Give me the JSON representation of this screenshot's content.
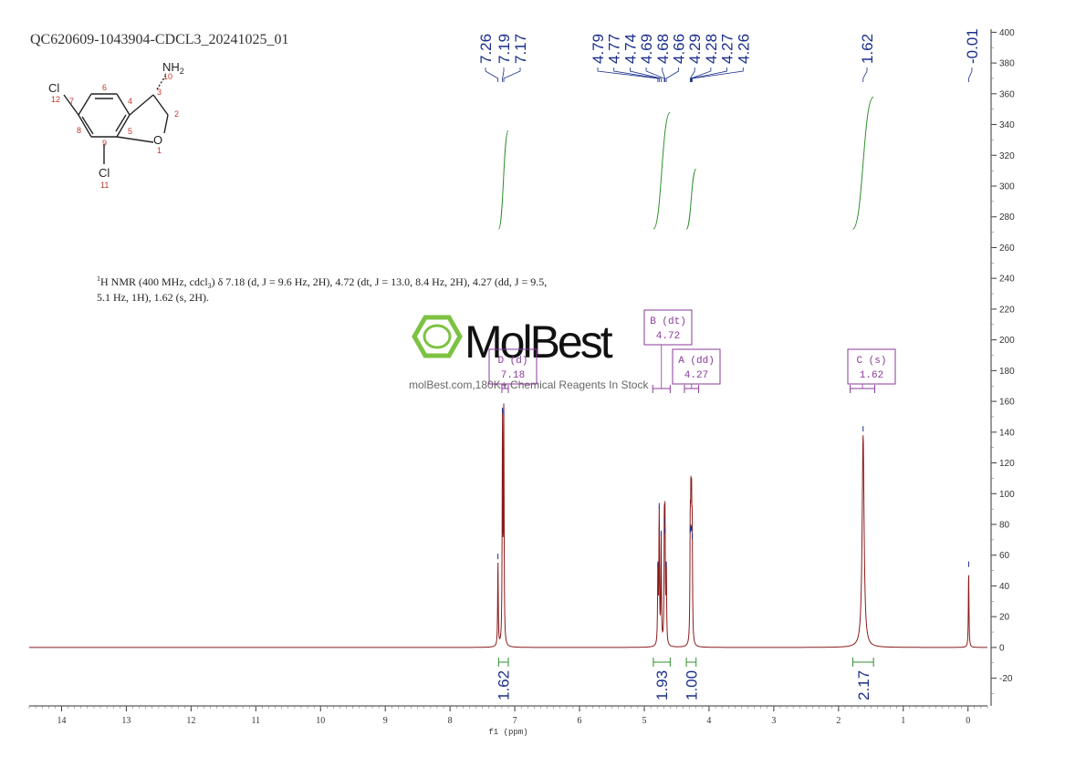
{
  "header": {
    "sample_id": "QC620609-1043904-CDCL3_20241025_01"
  },
  "structure": {
    "nh2": "NH",
    "nh2_sub": "2",
    "cl_top": "Cl",
    "cl_bottom": "Cl",
    "oxygen": "O",
    "atom_numbers": [
      "1",
      "2",
      "3",
      "4",
      "5",
      "6",
      "7",
      "8",
      "9",
      "10",
      "11",
      "12"
    ]
  },
  "description": {
    "line1": "H NMR (400 MHz, cdcl) δ 7.18 (d, J = 9.6 Hz, 2H), 4.72 (dt, J = 13.0, 8.4 Hz, 2H), 4.27 (dd, J = 9.5,",
    "line1_sup": "1",
    "line1_sub": "3",
    "line2": "5.1 Hz, 1H), 1.62 (s, 2H)."
  },
  "watermark": {
    "brand": "MolBest",
    "tagline": "molBest.com,180K+ Chemical Reagents In Stock"
  },
  "colors": {
    "spectrum": "#8b1a1a",
    "peak_labels": "#1a2f8a",
    "integrals": "#2f8f2f",
    "multiplets": "#8a3a9a",
    "watermark_green": "#7dc242",
    "axis": "#333333"
  },
  "chart_data": {
    "type": "line",
    "xlabel": "f1 (ppm)",
    "xlim": [
      14.5,
      -0.3
    ],
    "ylim": [
      -38,
      402
    ],
    "x_ticks": [
      14,
      13,
      12,
      11,
      10,
      9,
      8,
      7,
      6,
      5,
      4,
      3,
      2,
      1,
      0
    ],
    "y_ticks": [
      400,
      380,
      360,
      340,
      320,
      300,
      280,
      260,
      240,
      220,
      200,
      180,
      160,
      140,
      120,
      100,
      80,
      60,
      40,
      20,
      0,
      -20
    ],
    "peak_labels": [
      {
        "group": "a",
        "items": [
          "7.26",
          "7.19",
          "7.17"
        ],
        "ppm": [
          7.26,
          7.19,
          7.17
        ]
      },
      {
        "group": "b",
        "items": [
          "4.79",
          "4.77",
          "4.74",
          "4.69",
          "4.68",
          "4.66",
          "4.29",
          "4.28",
          "4.27",
          "4.26"
        ],
        "ppm": [
          4.79,
          4.77,
          4.74,
          4.69,
          4.68,
          4.66,
          4.29,
          4.28,
          4.27,
          4.26
        ]
      },
      {
        "group": "c",
        "items": [
          "1.62"
        ],
        "ppm": [
          1.62
        ]
      },
      {
        "group": "d",
        "items": [
          "-0.01"
        ],
        "ppm": [
          -0.01
        ]
      }
    ],
    "peaks": [
      {
        "ppm": 7.26,
        "height": 55
      },
      {
        "ppm": 7.19,
        "height": 150
      },
      {
        "ppm": 7.17,
        "height": 148
      },
      {
        "ppm": 4.79,
        "height": 50
      },
      {
        "ppm": 4.77,
        "height": 88
      },
      {
        "ppm": 4.74,
        "height": 70
      },
      {
        "ppm": 4.69,
        "height": 78
      },
      {
        "ppm": 4.68,
        "height": 72
      },
      {
        "ppm": 4.66,
        "height": 50
      },
      {
        "ppm": 4.29,
        "height": 72
      },
      {
        "ppm": 4.28,
        "height": 74
      },
      {
        "ppm": 4.27,
        "height": 73
      },
      {
        "ppm": 4.26,
        "height": 68
      },
      {
        "ppm": 1.62,
        "height": 138
      },
      {
        "ppm": -0.01,
        "height": 50
      }
    ],
    "integrals": [
      {
        "from": 7.25,
        "to": 7.1,
        "value": "1.62",
        "y_start": 272,
        "y_end": 336
      },
      {
        "from": 4.86,
        "to": 4.6,
        "value": "1.93",
        "y_start": 272,
        "y_end": 348
      },
      {
        "from": 4.35,
        "to": 4.2,
        "value": "1.00",
        "y_start": 272,
        "y_end": 311
      },
      {
        "from": 1.78,
        "to": 1.46,
        "value": "2.17",
        "y_start": 272,
        "y_end": 358
      }
    ],
    "multiplets": [
      {
        "label": "D (d)",
        "shift": "7.18",
        "from": 7.2,
        "to": 7.1
      },
      {
        "label": "B (dt)",
        "shift": "4.72",
        "from": 4.87,
        "to": 4.6
      },
      {
        "label": "A (dd)",
        "shift": "4.27",
        "from": 4.38,
        "to": 4.16
      },
      {
        "label": "C (s)",
        "shift": "1.62",
        "from": 1.82,
        "to": 1.44
      }
    ]
  }
}
